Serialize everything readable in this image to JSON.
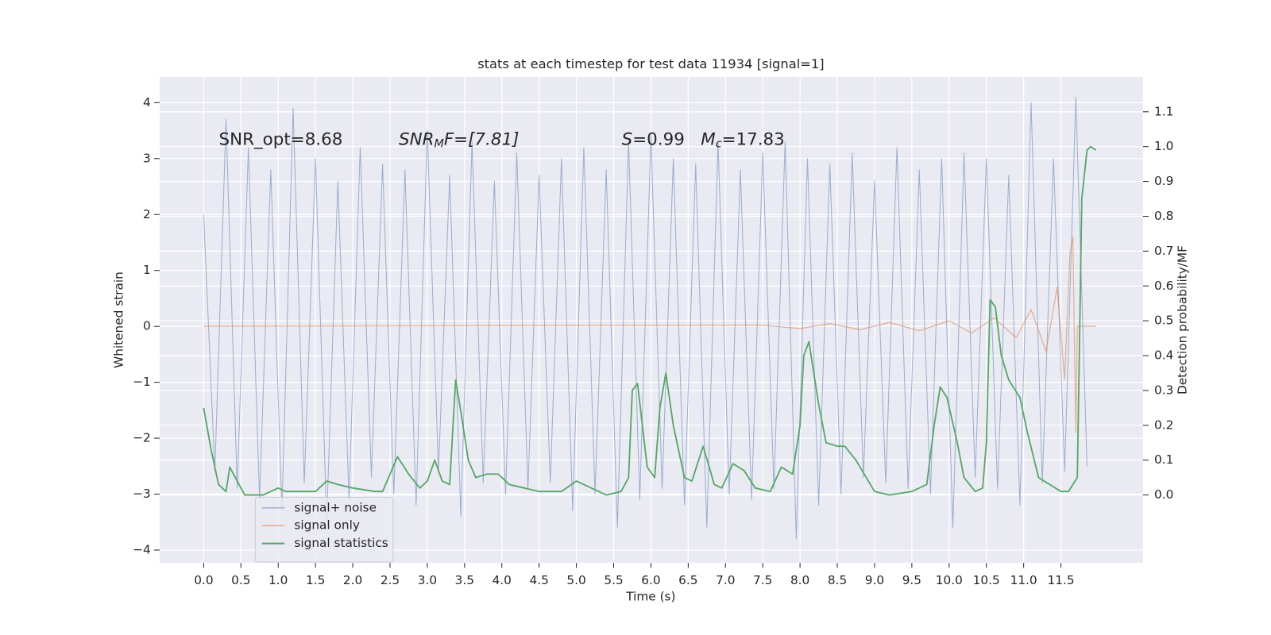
{
  "chart_data": {
    "type": "line",
    "title": "stats at each timestep for test data 11934 [signal=1]",
    "xlabel": "Time (s)",
    "ylabel": "Whitened strain",
    "y2label": "Detection probability/MF",
    "annotations": [
      [
        "SNR_opt=8.68"
      ],
      [
        "SNR",
        "M",
        "F=[7.81]"
      ],
      [
        "S",
        "=0.99   ",
        "M",
        "c",
        "=17.83"
      ]
    ],
    "xlim": [
      -0.59,
      12.6
    ],
    "ylim": [
      -4.23,
      4.46
    ],
    "y2lim": [
      -0.195,
      1.2
    ],
    "xticks": [
      {
        "value": 0,
        "label": "0.0"
      },
      {
        "value": 0.5,
        "label": "0.5"
      },
      {
        "value": 1,
        "label": "1.0"
      },
      {
        "value": 1.5,
        "label": "1.5"
      },
      {
        "value": 2,
        "label": "2.0"
      },
      {
        "value": 2.5,
        "label": "2.5"
      },
      {
        "value": 3,
        "label": "3.0"
      },
      {
        "value": 3.5,
        "label": "3.5"
      },
      {
        "value": 4,
        "label": "4.0"
      },
      {
        "value": 4.5,
        "label": "4.5"
      },
      {
        "value": 5,
        "label": "5.0"
      },
      {
        "value": 5.5,
        "label": "5.5"
      },
      {
        "value": 6,
        "label": "6.0"
      },
      {
        "value": 6.5,
        "label": "6.5"
      },
      {
        "value": 7,
        "label": "7.0"
      },
      {
        "value": 7.5,
        "label": "7.5"
      },
      {
        "value": 8,
        "label": "8.0"
      },
      {
        "value": 8.5,
        "label": "8.5"
      },
      {
        "value": 9,
        "label": "9.0"
      },
      {
        "value": 9.5,
        "label": "9.5"
      },
      {
        "value": 10,
        "label": "10.0"
      },
      {
        "value": 10.5,
        "label": "10.5"
      },
      {
        "value": 11,
        "label": "11.0"
      },
      {
        "value": 11.5,
        "label": "11.5"
      }
    ],
    "yticks": [
      {
        "value": -4,
        "label": "−4"
      },
      {
        "value": -3,
        "label": "−3"
      },
      {
        "value": -2,
        "label": "−2"
      },
      {
        "value": -1,
        "label": "−1"
      },
      0,
      1,
      2,
      3,
      4
    ],
    "y2ticks": [
      {
        "value": 0,
        "label": "0.0"
      },
      0.1,
      0.2,
      0.3,
      0.4,
      0.5,
      0.6,
      0.7,
      0.8,
      0.9,
      {
        "value": 1,
        "label": "1.0"
      },
      1.1
    ],
    "grid": true,
    "legend_loc": "lower left",
    "series": [
      {
        "name": "signal+ noise",
        "color": "#4c72b0",
        "x": [
          0,
          0.15,
          0.3,
          0.45,
          0.6,
          0.75,
          0.9,
          1.05,
          1.2,
          1.35,
          1.5,
          1.65,
          1.8,
          1.95,
          2.1,
          2.25,
          2.4,
          2.55,
          2.7,
          2.85,
          3.0,
          3.15,
          3.3,
          3.45,
          3.6,
          3.75,
          3.9,
          4.05,
          4.2,
          4.35,
          4.5,
          4.65,
          4.8,
          4.95,
          5.1,
          5.25,
          5.4,
          5.55,
          5.7,
          5.85,
          6.0,
          6.15,
          6.3,
          6.45,
          6.6,
          6.75,
          6.9,
          7.05,
          7.2,
          7.35,
          7.5,
          7.65,
          7.8,
          7.95,
          8.1,
          8.25,
          8.4,
          8.55,
          8.7,
          8.85,
          9.0,
          9.15,
          9.3,
          9.45,
          9.6,
          9.75,
          9.9,
          10.05,
          10.2,
          10.35,
          10.5,
          10.65,
          10.8,
          10.95,
          11.1,
          11.25,
          11.4,
          11.55,
          11.7,
          11.85
        ],
        "values": [
          2.0,
          -2.6,
          3.7,
          -2.9,
          3.2,
          -3.1,
          2.8,
          -3.3,
          3.9,
          -2.8,
          3.0,
          -3.5,
          2.6,
          -3.1,
          3.2,
          -2.7,
          2.9,
          -3.0,
          2.8,
          -3.2,
          3.5,
          -2.6,
          2.7,
          -3.4,
          3.3,
          -2.8,
          2.6,
          -3.0,
          3.1,
          -2.9,
          2.7,
          -2.8,
          3.0,
          -3.3,
          3.2,
          -3.0,
          2.8,
          -3.6,
          3.3,
          -3.1,
          3.4,
          -2.9,
          3.0,
          -3.2,
          2.9,
          -3.6,
          3.3,
          -3.0,
          2.8,
          -3.1,
          3.1,
          -2.9,
          3.3,
          -3.8,
          3.0,
          -3.2,
          2.9,
          -3.0,
          3.1,
          -2.7,
          2.6,
          -2.8,
          3.2,
          -2.9,
          2.8,
          -3.0,
          3.0,
          -3.6,
          3.1,
          -2.7,
          3.0,
          -2.9,
          2.7,
          -3.2,
          4.0,
          -2.8,
          3.0,
          -2.6,
          4.1,
          -2.5
        ]
      },
      {
        "name": "signal only",
        "color": "#dd8452",
        "x": [
          0,
          7.5,
          8.0,
          8.4,
          8.8,
          9.2,
          9.6,
          10.0,
          10.3,
          10.6,
          10.9,
          11.1,
          11.3,
          11.45,
          11.55,
          11.62,
          11.66,
          11.7,
          11.72,
          11.97
        ],
        "values": [
          0,
          0.02,
          -0.04,
          0.05,
          -0.06,
          0.07,
          -0.08,
          0.1,
          -0.12,
          0.15,
          -0.2,
          0.3,
          -0.45,
          0.7,
          -0.95,
          1.3,
          1.6,
          -1.9,
          0,
          0
        ]
      },
      {
        "name": "signal statistics",
        "color": "#55a868",
        "axis": "y2",
        "x": [
          0,
          0.1,
          0.2,
          0.3,
          0.35,
          0.45,
          0.55,
          0.8,
          1.0,
          1.1,
          1.3,
          1.5,
          1.65,
          1.8,
          2.0,
          2.3,
          2.4,
          2.5,
          2.6,
          2.75,
          2.9,
          3.0,
          3.1,
          3.2,
          3.3,
          3.38,
          3.45,
          3.55,
          3.65,
          3.8,
          3.95,
          4.1,
          4.3,
          4.5,
          4.8,
          5.0,
          5.2,
          5.4,
          5.6,
          5.7,
          5.75,
          5.82,
          5.95,
          6.05,
          6.12,
          6.2,
          6.3,
          6.45,
          6.55,
          6.7,
          6.85,
          6.95,
          7.1,
          7.25,
          7.4,
          7.6,
          7.75,
          7.9,
          8.0,
          8.05,
          8.12,
          8.25,
          8.35,
          8.5,
          8.6,
          8.75,
          9.0,
          9.2,
          9.5,
          9.7,
          9.8,
          9.88,
          9.97,
          10.1,
          10.2,
          10.35,
          10.45,
          10.5,
          10.55,
          10.62,
          10.7,
          10.8,
          10.95,
          11.05,
          11.2,
          11.5,
          11.6,
          11.72,
          11.78,
          11.85,
          11.9,
          11.97
        ],
        "values": [
          0.25,
          0.13,
          0.03,
          0.01,
          0.08,
          0.04,
          0.0,
          0.0,
          0.02,
          0.01,
          0.01,
          0.01,
          0.04,
          0.03,
          0.02,
          0.01,
          0.01,
          0.06,
          0.11,
          0.06,
          0.02,
          0.04,
          0.1,
          0.04,
          0.03,
          0.33,
          0.24,
          0.1,
          0.05,
          0.06,
          0.06,
          0.03,
          0.02,
          0.01,
          0.01,
          0.04,
          0.02,
          0.0,
          0.01,
          0.05,
          0.3,
          0.32,
          0.08,
          0.05,
          0.25,
          0.35,
          0.2,
          0.05,
          0.04,
          0.14,
          0.03,
          0.02,
          0.09,
          0.07,
          0.02,
          0.01,
          0.08,
          0.06,
          0.2,
          0.4,
          0.44,
          0.26,
          0.15,
          0.14,
          0.14,
          0.1,
          0.01,
          0.0,
          0.01,
          0.03,
          0.2,
          0.31,
          0.28,
          0.16,
          0.05,
          0.01,
          0.02,
          0.15,
          0.56,
          0.54,
          0.4,
          0.33,
          0.28,
          0.18,
          0.05,
          0.01,
          0.01,
          0.05,
          0.85,
          0.99,
          1.0,
          0.99
        ]
      }
    ]
  }
}
